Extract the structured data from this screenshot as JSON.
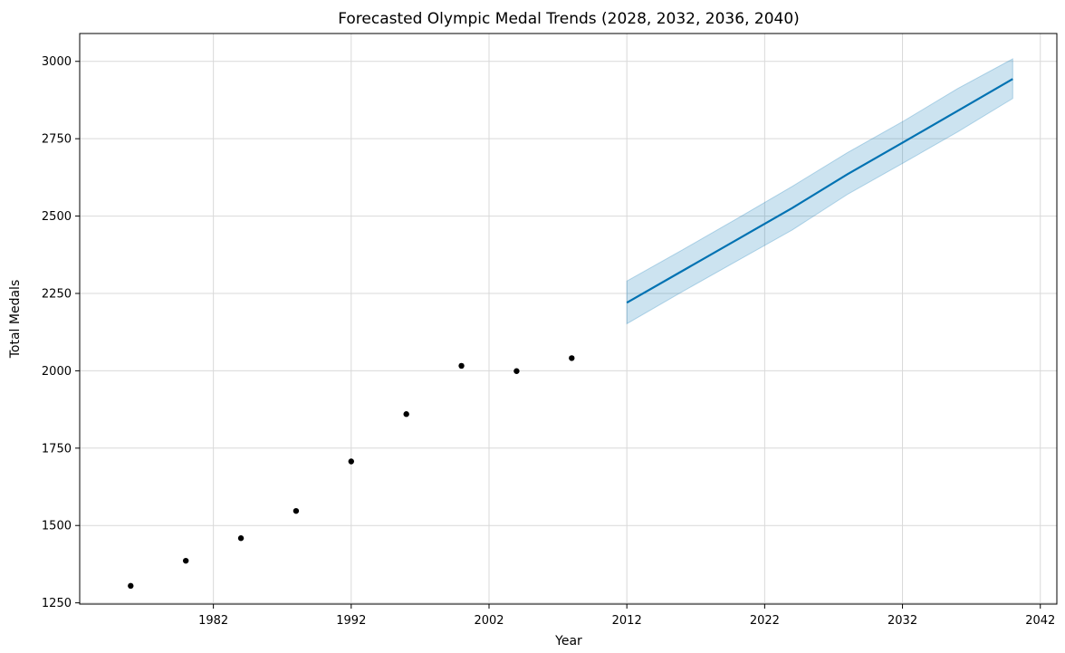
{
  "chart_data": {
    "type": "line",
    "title": "Forecasted Olympic Medal Trends (2028, 2032, 2036, 2040)",
    "xlabel": "Year",
    "ylabel": "Total Medals",
    "xlim": [
      1972.3,
      2043.2
    ],
    "ylim": [
      1246,
      3090
    ],
    "xticks": [
      1982,
      1992,
      2002,
      2012,
      2022,
      2032,
      2042
    ],
    "yticks": [
      1250,
      1500,
      1750,
      2000,
      2250,
      2500,
      2750,
      3000
    ],
    "grid": true,
    "legend": "none",
    "colors": {
      "points": "#000000",
      "forecast_line": "#0072b2",
      "uncertainty_band": "#0072b2",
      "grid": "#d9d9d9",
      "axes": "#000000"
    },
    "observed": {
      "x": [
        1976,
        1980,
        1984,
        1988,
        1992,
        1996,
        2000,
        2004,
        2008
      ],
      "y": [
        1305,
        1386,
        1459,
        1547,
        1707,
        1860,
        2016,
        1999,
        2041
      ]
    },
    "forecast": {
      "x": [
        2012,
        2016,
        2020,
        2024,
        2028,
        2032,
        2036,
        2040
      ],
      "yhat": [
        2220,
        2322,
        2424,
        2526,
        2635,
        2737,
        2840,
        2943
      ],
      "yhat_lower": [
        2152,
        2255,
        2355,
        2455,
        2570,
        2670,
        2772,
        2880
      ],
      "yhat_upper": [
        2290,
        2390,
        2492,
        2596,
        2705,
        2805,
        2912,
        3008
      ]
    }
  }
}
